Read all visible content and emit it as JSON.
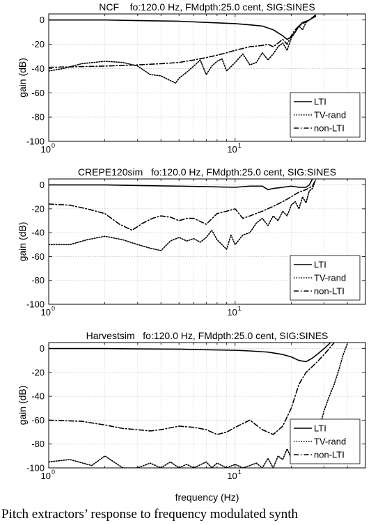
{
  "chart_data": [
    {
      "type": "line",
      "title": "NCF    fo:120.0 Hz, FMdpth:25.0 cent, SIG:SINES",
      "xlabel": "",
      "ylabel": "gain (dB)",
      "xscale": "log",
      "xlim": [
        1,
        50
      ],
      "ylim": [
        -100,
        5
      ],
      "yticks": [
        0,
        -20,
        -40,
        -60,
        -80,
        -100
      ],
      "ytick_labels": [
        "0",
        "-20",
        "-40",
        "-60",
        "-80",
        "-100"
      ],
      "xtick_labels": [
        {
          "base": "10",
          "exp": "0"
        },
        {
          "base": "10",
          "exp": "1"
        }
      ],
      "grid": true,
      "legend_position": "bottom-right",
      "series": [
        {
          "name": "LTI",
          "style": "solid",
          "x": [
            1,
            2,
            3,
            5,
            7,
            10,
            12,
            14,
            16,
            18,
            19,
            20,
            21,
            22,
            23,
            25,
            27
          ],
          "y": [
            0,
            0,
            -0.5,
            -1,
            -2,
            -3,
            -4,
            -5,
            -8,
            -13,
            -16,
            -14,
            -10,
            -5,
            -2,
            0,
            3
          ]
        },
        {
          "name": "TV-rand",
          "style": "dotted",
          "x": [
            1,
            1.2,
            1.5,
            2,
            2.5,
            3,
            3.5,
            4,
            4.5,
            4.8,
            5,
            5.5,
            6,
            6.5,
            7,
            7.5,
            8,
            8.5,
            9,
            10,
            11,
            12,
            13,
            14,
            15,
            16,
            17,
            18,
            19,
            20,
            21,
            22,
            23,
            24,
            25,
            27
          ],
          "y": [
            -42,
            -40,
            -36,
            -34,
            -35,
            -38,
            -45,
            -46,
            -50,
            -52,
            -48,
            -43,
            -38,
            -33,
            -45,
            -38,
            -34,
            -32,
            -42,
            -35,
            -28,
            -37,
            -35,
            -27,
            -33,
            -28,
            -22,
            -19,
            -25,
            -15,
            -10,
            -5,
            -8,
            -2,
            0,
            4
          ]
        },
        {
          "name": "non-LTI",
          "style": "dashdot",
          "x": [
            1,
            2,
            3,
            4,
            5,
            6,
            7,
            8,
            9,
            10,
            12,
            14,
            15,
            16,
            17,
            18,
            19,
            20,
            21,
            22,
            23,
            25,
            27
          ],
          "y": [
            -39,
            -38,
            -37,
            -36,
            -35,
            -33,
            -31,
            -29,
            -27,
            -25,
            -22,
            -21,
            -20,
            -22,
            -19,
            -16,
            -20,
            -13,
            -8,
            -5,
            -3,
            0,
            4
          ]
        }
      ]
    },
    {
      "type": "line",
      "title": "CREPE120sim   fo:120.0 Hz, FMdpth:25.0 cent, SIG:SINES",
      "xlabel": "",
      "ylabel": "gain (dB)",
      "xscale": "log",
      "xlim": [
        1,
        50
      ],
      "ylim": [
        -100,
        5
      ],
      "yticks": [
        0,
        -20,
        -40,
        -60,
        -80,
        -100
      ],
      "ytick_labels": [
        "0",
        "-20",
        "-40",
        "-60",
        "-80",
        "-100"
      ],
      "xtick_labels": [
        {
          "base": "10",
          "exp": "0"
        },
        {
          "base": "10",
          "exp": "1"
        }
      ],
      "grid": true,
      "legend_position": "bottom-right",
      "series": [
        {
          "name": "LTI",
          "style": "solid",
          "x": [
            1,
            2,
            3,
            5,
            7,
            10,
            12,
            14,
            15,
            16,
            18,
            20,
            22,
            24,
            25,
            26
          ],
          "y": [
            0,
            0,
            -0.5,
            -1,
            -1.5,
            -2,
            -1,
            -1,
            -4,
            -3,
            -2,
            -1,
            -2,
            -2,
            0,
            5
          ]
        },
        {
          "name": "TV-rand",
          "style": "dotted",
          "x": [
            1,
            1.3,
            1.6,
            2,
            2.5,
            3,
            3.5,
            4,
            4.5,
            5,
            5.5,
            6,
            6.5,
            7,
            7.5,
            8,
            8.5,
            9,
            9.5,
            10,
            11,
            12,
            13,
            14,
            15,
            16,
            17,
            18,
            19,
            20,
            21,
            22,
            23,
            24,
            25,
            26,
            27
          ],
          "y": [
            -50,
            -50,
            -46,
            -43,
            -46,
            -50,
            -53,
            -55,
            -47,
            -44,
            -47,
            -45,
            -48,
            -44,
            -38,
            -46,
            -50,
            -54,
            -42,
            -50,
            -42,
            -40,
            -32,
            -28,
            -34,
            -26,
            -30,
            -22,
            -26,
            -17,
            -14,
            -20,
            -10,
            -15,
            -5,
            -3,
            4
          ]
        },
        {
          "name": "non-LTI",
          "style": "dashdot",
          "x": [
            1,
            1.3,
            1.6,
            2,
            2.4,
            2.8,
            3.2,
            3.6,
            4,
            4.5,
            5,
            5.5,
            6,
            7,
            8,
            9,
            10,
            11,
            12,
            14,
            16,
            18,
            20,
            22,
            24,
            26,
            27
          ],
          "y": [
            -16,
            -17,
            -20,
            -24,
            -33,
            -38,
            -32,
            -28,
            -26,
            -27,
            -30,
            -28,
            -28,
            -33,
            -24,
            -22,
            -20,
            -28,
            -26,
            -22,
            -18,
            -14,
            -10,
            -6,
            -4,
            -1,
            4
          ]
        }
      ]
    },
    {
      "type": "line",
      "title": "Harvestsim   fo:120.0 Hz, FMdpth:25.0 cent, SIG:SINES",
      "xlabel": "frequency (Hz)",
      "ylabel": "gain (dB)",
      "xscale": "log",
      "xlim": [
        1,
        50
      ],
      "ylim": [
        -100,
        5
      ],
      "yticks": [
        0,
        -20,
        -40,
        -60,
        -80,
        -100
      ],
      "ytick_labels": [
        "0",
        "-20",
        "-40",
        "-60",
        "-80",
        "-100"
      ],
      "xtick_labels": [
        {
          "base": "10",
          "exp": "0"
        },
        {
          "base": "10",
          "exp": "1"
        }
      ],
      "grid": true,
      "legend_position": "bottom-right",
      "series": [
        {
          "name": "LTI",
          "style": "solid",
          "x": [
            1,
            2,
            3,
            5,
            7,
            10,
            12,
            15,
            18,
            20,
            22,
            24,
            26,
            28,
            30,
            32,
            33
          ],
          "y": [
            0,
            0,
            -0.3,
            -0.5,
            -1,
            -1.5,
            -2,
            -3,
            -5,
            -7,
            -10,
            -11,
            -8,
            -4,
            0,
            4,
            6
          ]
        },
        {
          "name": "TV-rand",
          "style": "dotted",
          "x": [
            1,
            1.3,
            1.7,
            2,
            2.5,
            3,
            3.5,
            4,
            4.5,
            5,
            5.5,
            6,
            7,
            7.5,
            8,
            9,
            10,
            11,
            12,
            13,
            14,
            15,
            16,
            17,
            18,
            19,
            20,
            21,
            22,
            23,
            24,
            26,
            28,
            30,
            32,
            34,
            36,
            38,
            40
          ],
          "y": [
            -95,
            -93,
            -98,
            -90,
            -100,
            -100,
            -96,
            -100,
            -95,
            -100,
            -97,
            -100,
            -95,
            -100,
            -96,
            -100,
            -97,
            -100,
            -98,
            -96,
            -100,
            -92,
            -100,
            -90,
            -93,
            -84,
            -92,
            -80,
            -75,
            -88,
            -70,
            -65,
            -70,
            -52,
            -40,
            -30,
            -18,
            -5,
            4
          ]
        },
        {
          "name": "non-LTI",
          "style": "dashdot",
          "x": [
            1,
            1.5,
            2,
            2.5,
            3,
            3.5,
            4,
            5,
            6,
            7,
            8,
            9,
            10,
            12,
            14,
            16,
            18,
            20,
            22,
            24,
            26,
            28,
            30,
            32,
            34
          ],
          "y": [
            -60,
            -61,
            -64,
            -67,
            -68,
            -69,
            -68,
            -65,
            -66,
            -68,
            -72,
            -70,
            -66,
            -60,
            -68,
            -72,
            -65,
            -50,
            -30,
            -20,
            -15,
            -10,
            -5,
            0,
            5
          ]
        }
      ]
    }
  ],
  "caption": "Pitch extractors’ response to frequency modulated synth"
}
